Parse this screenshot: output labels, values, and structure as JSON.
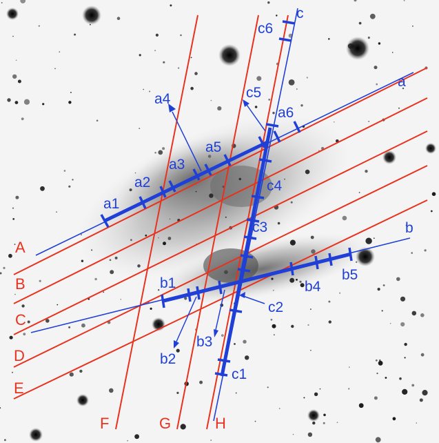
{
  "colors": {
    "slit_lines": "#e8321e",
    "apertures": "#1f3fd6",
    "background": "#f4f4f4",
    "stars": "#1a1a1a"
  },
  "slits_parallel": [
    "A",
    "B",
    "C",
    "D",
    "E"
  ],
  "slits_steep": [
    "F",
    "G",
    "H"
  ],
  "aperture_axes": [
    "a",
    "b",
    "c"
  ],
  "segments_a": [
    "a1",
    "a2",
    "a3",
    "a4",
    "a5",
    "a6"
  ],
  "segments_b": [
    "b1",
    "b2",
    "b3",
    "b4",
    "b5"
  ],
  "segments_c": [
    "c1",
    "c2",
    "c3",
    "c4",
    "c5",
    "c6"
  ]
}
